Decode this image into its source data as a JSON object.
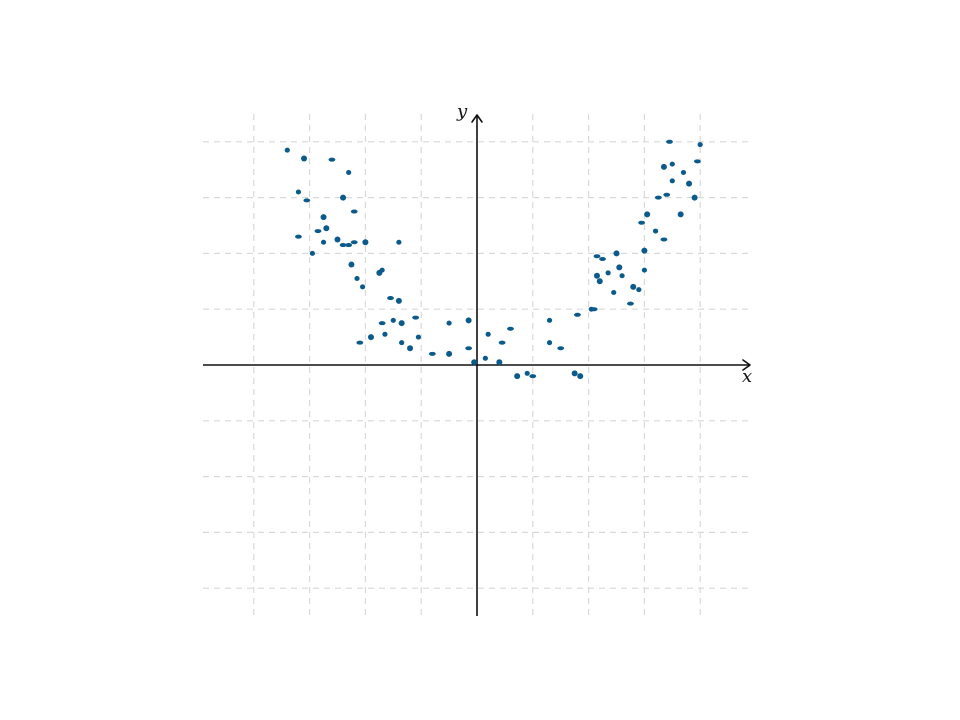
{
  "chart_data": {
    "type": "scatter",
    "title": "",
    "xlabel": "x",
    "ylabel": "y",
    "xlim": [
      -4.9,
      4.9
    ],
    "ylim": [
      -4.5,
      4.5
    ],
    "grid": true,
    "grid_style": "dashed",
    "tick_labels": false,
    "colors": {
      "points": "#0b5a8c",
      "grid": "#d9d9d9",
      "axes": "#111111"
    },
    "series": [
      {
        "x": [
          -3.4,
          -3.1,
          -2.6,
          -2.3,
          -2.4,
          -2.2,
          -3.2,
          -2.75,
          -3.05,
          -2.75,
          -2.0,
          -3.2,
          -2.95,
          -2.5,
          -2.4,
          -1.4,
          -2.25,
          -2.3,
          -2.15,
          -2.7,
          -2.85,
          -1.7,
          -1.75,
          -2.2,
          -2.05,
          -1.4,
          -1.55,
          -1.5,
          -1.35,
          -1.1,
          -1.65,
          -1.9,
          -2.1,
          -1.35,
          -1.2,
          -1.7,
          -0.5,
          -0.15,
          -0.8,
          -1.05,
          -0.5,
          -0.15,
          0.2,
          -0.05,
          0.6,
          0.15,
          0.4,
          0.45,
          0.9,
          0.72,
          1.0,
          1.3,
          1.85,
          1.5,
          1.3,
          1.75,
          1.8,
          2.05,
          2.15,
          2.1,
          2.45,
          2.2,
          2.25,
          2.6,
          2.5,
          2.15,
          2.35,
          2.55,
          2.75,
          2.9,
          3.0,
          2.95,
          3.2,
          3.05,
          3.35,
          3.5,
          3.65,
          3.25,
          3.5,
          3.9,
          3.4,
          3.7,
          3.8,
          3.95,
          4.0,
          3.35,
          3.45,
          3.0,
          2.8
        ],
        "y": [
          3.85,
          3.7,
          3.68,
          3.45,
          3.0,
          2.75,
          3.1,
          2.65,
          2.95,
          2.2,
          2.2,
          2.3,
          2.0,
          2.25,
          2.15,
          2.2,
          1.8,
          2.15,
          1.55,
          2.45,
          2.4,
          1.7,
          1.65,
          2.2,
          1.4,
          1.15,
          1.2,
          0.8,
          0.75,
          0.85,
          0.55,
          0.5,
          0.4,
          0.4,
          0.3,
          0.75,
          0.75,
          0.8,
          0.2,
          0.5,
          0.2,
          0.3,
          0.55,
          0.05,
          0.65,
          0.12,
          0.05,
          0.4,
          -0.15,
          -0.2,
          -0.2,
          0.4,
          -0.2,
          0.3,
          0.8,
          -0.15,
          0.9,
          1.0,
          1.6,
          1.0,
          1.3,
          1.5,
          1.9,
          1.6,
          2.0,
          1.95,
          1.65,
          1.75,
          1.1,
          1.35,
          2.05,
          2.55,
          2.4,
          2.7,
          2.25,
          3.3,
          2.7,
          3.0,
          3.6,
          3.0,
          3.05,
          3.45,
          3.25,
          3.65,
          3.95,
          3.55,
          4.0,
          1.7,
          1.4
        ]
      }
    ]
  }
}
